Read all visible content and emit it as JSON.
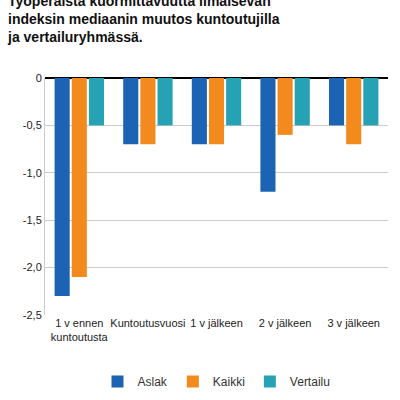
{
  "chart_data": {
    "type": "bar",
    "title": "Työperäistä kuormittavuutta ilmaisevan indeksin mediaanin muutos kuntoutujilla ja vertailuryhmässä.",
    "categories": [
      "1 v ennen kuntoutusta",
      "Kuntoutusvuosi",
      "1 v jälkeen",
      "2 v jälkeen",
      "3 v jälkeen"
    ],
    "series": [
      {
        "name": "Aslak",
        "color": "#1c63b3",
        "values": [
          -2.3,
          -0.7,
          -0.7,
          -1.2,
          -0.5
        ]
      },
      {
        "name": "Kaikki",
        "color": "#f28a1e",
        "values": [
          -2.1,
          -0.7,
          -0.7,
          -0.6,
          -0.7
        ]
      },
      {
        "name": "Vertailu",
        "color": "#27a2b4",
        "values": [
          -0.5,
          -0.5,
          -0.5,
          -0.5,
          -0.5
        ]
      }
    ],
    "ylim": [
      -2.5,
      0
    ],
    "yticks": [
      0,
      {
        "value": -0.5,
        "label": "-0,5"
      },
      {
        "value": -1,
        "label": "-1,0"
      },
      {
        "value": -1.5,
        "label": "-1,5"
      },
      {
        "value": -2,
        "label": "-2,0"
      },
      {
        "value": -2.5,
        "label": "-2,5"
      }
    ],
    "grid": true,
    "legend": "bottom"
  }
}
